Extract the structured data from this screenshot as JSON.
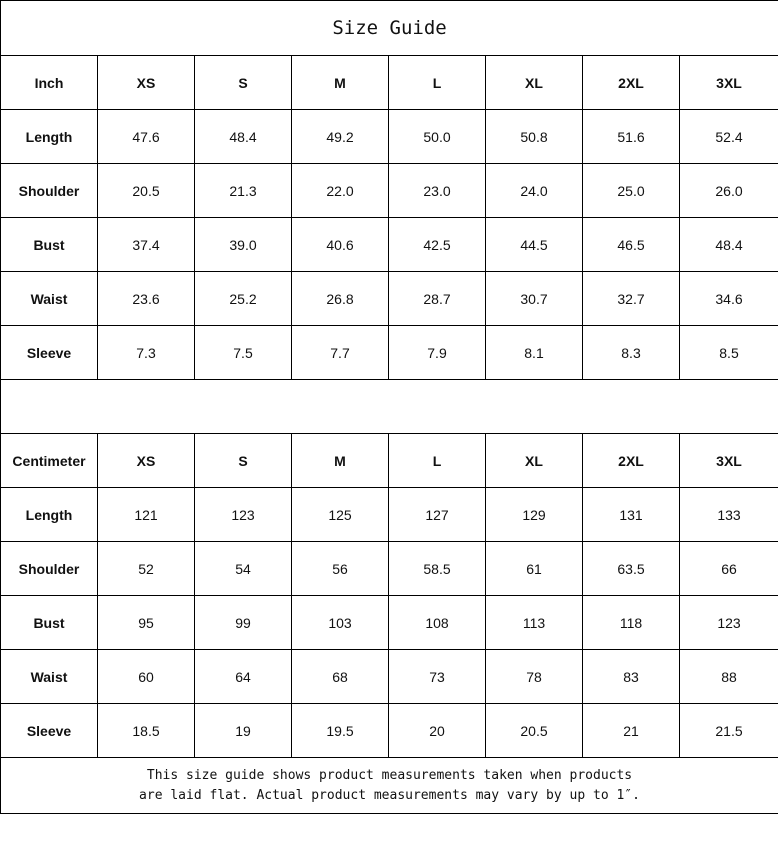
{
  "title": "Size Guide",
  "tables": [
    {
      "unit": "Inch",
      "sizes": [
        "XS",
        "S",
        "M",
        "L",
        "XL",
        "2XL",
        "3XL"
      ],
      "rows": [
        {
          "label": "Length",
          "values": [
            "47.6",
            "48.4",
            "49.2",
            "50.0",
            "50.8",
            "51.6",
            "52.4"
          ]
        },
        {
          "label": "Shoulder",
          "values": [
            "20.5",
            "21.3",
            "22.0",
            "23.0",
            "24.0",
            "25.0",
            "26.0"
          ]
        },
        {
          "label": "Bust",
          "values": [
            "37.4",
            "39.0",
            "40.6",
            "42.5",
            "44.5",
            "46.5",
            "48.4"
          ]
        },
        {
          "label": "Waist",
          "values": [
            "23.6",
            "25.2",
            "26.8",
            "28.7",
            "30.7",
            "32.7",
            "34.6"
          ]
        },
        {
          "label": "Sleeve",
          "values": [
            "7.3",
            "7.5",
            "7.7",
            "7.9",
            "8.1",
            "8.3",
            "8.5"
          ]
        }
      ]
    },
    {
      "unit": "Centimeter",
      "sizes": [
        "XS",
        "S",
        "M",
        "L",
        "XL",
        "2XL",
        "3XL"
      ],
      "rows": [
        {
          "label": "Length",
          "values": [
            "121",
            "123",
            "125",
            "127",
            "129",
            "131",
            "133"
          ]
        },
        {
          "label": "Shoulder",
          "values": [
            "52",
            "54",
            "56",
            "58.5",
            "61",
            "63.5",
            "66"
          ]
        },
        {
          "label": "Bust",
          "values": [
            "95",
            "99",
            "103",
            "108",
            "113",
            "118",
            "123"
          ]
        },
        {
          "label": "Waist",
          "values": [
            "60",
            "64",
            "68",
            "73",
            "78",
            "83",
            "88"
          ]
        },
        {
          "label": "Sleeve",
          "values": [
            "18.5",
            "19",
            "19.5",
            "20",
            "20.5",
            "21",
            "21.5"
          ]
        }
      ]
    }
  ],
  "note": {
    "line1": "This size guide shows product measurements taken when products",
    "line2": "are laid flat. Actual product measurements may vary by up to 1″."
  }
}
